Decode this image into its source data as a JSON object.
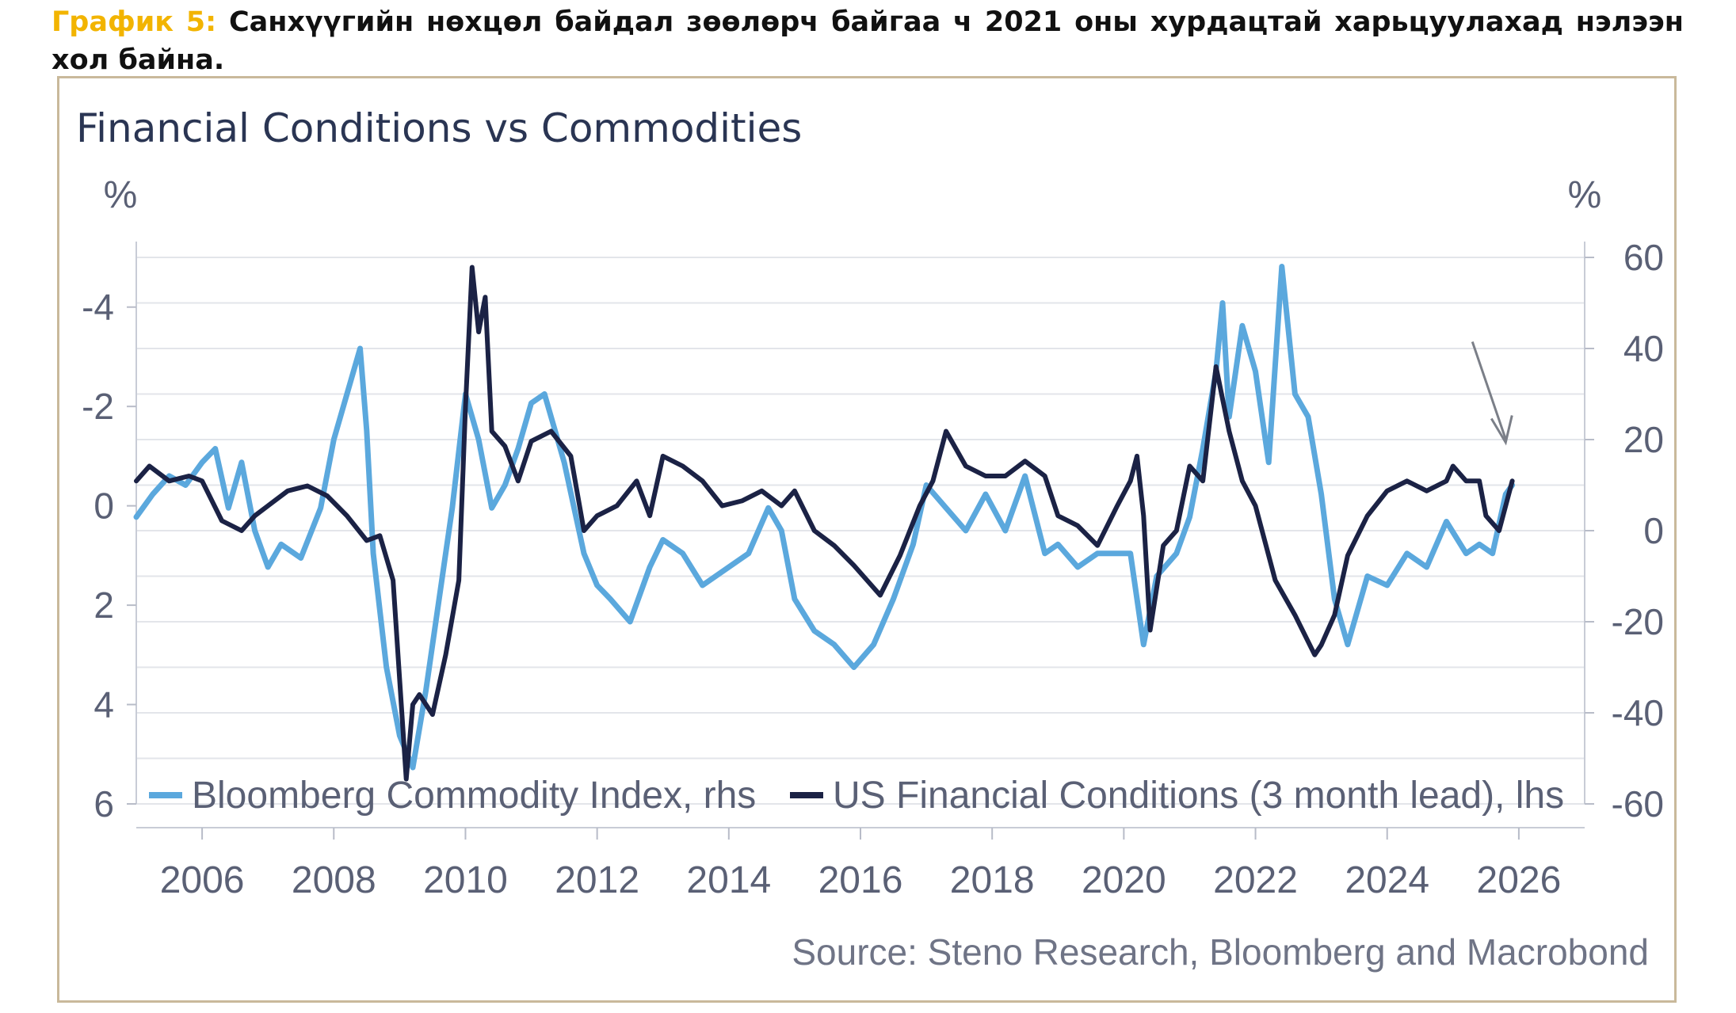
{
  "caption": {
    "label": "График 5:",
    "text": " Санхүүгийн нөхцөл байдал зөөлөрч байгаа ч 2021 оны хурдацтай харьцуулахад нэлээн хол байна."
  },
  "chart_data": {
    "type": "line",
    "title": "Financial Conditions vs Commodities",
    "left_axis": {
      "label": "%",
      "ticks": [
        -4,
        -2,
        0,
        2,
        4,
        6
      ],
      "range": [
        -5,
        6
      ],
      "inverted": true
    },
    "right_axis": {
      "label": "%",
      "ticks": [
        60,
        40,
        20,
        0,
        -20,
        -40,
        -60
      ],
      "range": [
        -60,
        60
      ]
    },
    "x_axis": {
      "ticks": [
        "2006",
        "2008",
        "2010",
        "2012",
        "2014",
        "2016",
        "2018",
        "2020",
        "2022",
        "2024",
        "2026"
      ],
      "range": [
        2005,
        2027
      ]
    },
    "grid": true,
    "legend_position": "bottom-inside",
    "colors": {
      "commodity": "#5ba8dd",
      "financial": "#1b2245"
    },
    "series": [
      {
        "name": "Bloomberg Commodity Index, rhs",
        "axis": "right",
        "color": "#5ba8dd",
        "x": [
          2005.0,
          2005.25,
          2005.5,
          2005.75,
          2006.0,
          2006.2,
          2006.4,
          2006.6,
          2006.8,
          2007.0,
          2007.2,
          2007.5,
          2007.8,
          2008.0,
          2008.2,
          2008.4,
          2008.5,
          2008.6,
          2008.8,
          2009.0,
          2009.2,
          2009.4,
          2009.6,
          2009.8,
          2010.0,
          2010.2,
          2010.4,
          2010.6,
          2010.8,
          2011.0,
          2011.2,
          2011.5,
          2011.8,
          2012.0,
          2012.2,
          2012.5,
          2012.8,
          2013.0,
          2013.3,
          2013.6,
          2014.0,
          2014.3,
          2014.6,
          2014.8,
          2015.0,
          2015.3,
          2015.6,
          2015.9,
          2016.2,
          2016.5,
          2016.8,
          2017.0,
          2017.3,
          2017.6,
          2017.9,
          2018.2,
          2018.5,
          2018.8,
          2019.0,
          2019.3,
          2019.6,
          2019.9,
          2020.1,
          2020.2,
          2020.3,
          2020.5,
          2020.8,
          2021.0,
          2021.2,
          2021.4,
          2021.5,
          2021.6,
          2021.8,
          2022.0,
          2022.2,
          2022.4,
          2022.6,
          2022.8,
          2023.0,
          2023.2,
          2023.4,
          2023.7,
          2024.0,
          2024.3,
          2024.6,
          2024.9,
          2025.2,
          2025.4,
          2025.6,
          2025.8,
          2025.9
        ],
        "values": [
          3,
          8,
          12,
          10,
          15,
          18,
          5,
          15,
          0,
          -8,
          -3,
          -6,
          5,
          20,
          30,
          40,
          22,
          -5,
          -30,
          -45,
          -52,
          -35,
          -15,
          5,
          30,
          20,
          5,
          10,
          18,
          28,
          30,
          15,
          -5,
          -12,
          -15,
          -20,
          -8,
          -2,
          -5,
          -12,
          -8,
          -5,
          5,
          0,
          -15,
          -22,
          -25,
          -30,
          -25,
          -15,
          -3,
          10,
          5,
          0,
          8,
          0,
          12,
          -5,
          -3,
          -8,
          -5,
          -5,
          -5,
          -15,
          -25,
          -10,
          -5,
          3,
          18,
          35,
          50,
          25,
          45,
          35,
          15,
          58,
          30,
          25,
          8,
          -15,
          -25,
          -10,
          -12,
          -5,
          -8,
          2,
          -5,
          -3,
          -5,
          8,
          10
        ]
      },
      {
        "name": "US Financial Conditions (3 month lead), lhs",
        "axis": "left",
        "color": "#1b2245",
        "x": [
          2005.0,
          2005.2,
          2005.5,
          2005.8,
          2006.0,
          2006.3,
          2006.6,
          2006.8,
          2007.0,
          2007.3,
          2007.6,
          2007.9,
          2008.2,
          2008.5,
          2008.7,
          2008.9,
          2009.0,
          2009.1,
          2009.2,
          2009.3,
          2009.5,
          2009.7,
          2009.9,
          2010.0,
          2010.1,
          2010.2,
          2010.3,
          2010.4,
          2010.6,
          2010.8,
          2011.0,
          2011.3,
          2011.6,
          2011.8,
          2012.0,
          2012.3,
          2012.6,
          2012.8,
          2013.0,
          2013.3,
          2013.6,
          2013.9,
          2014.2,
          2014.5,
          2014.8,
          2015.0,
          2015.3,
          2015.6,
          2015.9,
          2016.1,
          2016.3,
          2016.6,
          2016.9,
          2017.1,
          2017.3,
          2017.6,
          2017.9,
          2018.2,
          2018.5,
          2018.8,
          2019.0,
          2019.3,
          2019.6,
          2019.9,
          2020.1,
          2020.2,
          2020.3,
          2020.4,
          2020.6,
          2020.8,
          2021.0,
          2021.2,
          2021.4,
          2021.6,
          2021.8,
          2022.0,
          2022.3,
          2022.6,
          2022.9,
          2023.0,
          2023.2,
          2023.4,
          2023.7,
          2024.0,
          2024.3,
          2024.6,
          2024.9,
          2025.0,
          2025.2,
          2025.4,
          2025.5,
          2025.7,
          2025.9
        ],
        "values": [
          -0.5,
          -0.8,
          -0.5,
          -0.6,
          -0.5,
          0.3,
          0.5,
          0.2,
          0,
          -0.3,
          -0.4,
          -0.2,
          0.2,
          0.7,
          0.6,
          1.5,
          3.5,
          5.5,
          4.0,
          3.8,
          4.2,
          3.0,
          1.5,
          -2.0,
          -4.8,
          -3.5,
          -4.2,
          -1.5,
          -1.2,
          -0.5,
          -1.3,
          -1.5,
          -1.0,
          0.5,
          0.2,
          0,
          -0.5,
          0.2,
          -1.0,
          -0.8,
          -0.5,
          0,
          -0.1,
          -0.3,
          0,
          -0.3,
          0.5,
          0.8,
          1.2,
          1.5,
          1.8,
          1.0,
          0,
          -0.5,
          -1.5,
          -0.8,
          -0.6,
          -0.6,
          -0.9,
          -0.6,
          0.2,
          0.4,
          0.8,
          0,
          -0.5,
          -1.0,
          0.2,
          2.5,
          0.8,
          0.5,
          -0.8,
          -0.5,
          -2.8,
          -1.5,
          -0.5,
          0,
          1.5,
          2.2,
          3.0,
          2.8,
          2.2,
          1.0,
          0.2,
          -0.3,
          -0.5,
          -0.3,
          -0.5,
          -0.8,
          -0.5,
          -0.5,
          0.2,
          0.5,
          -0.5
        ]
      }
    ],
    "annotations": [
      {
        "type": "arrow",
        "x": 2025.8,
        "y_right": 18
      }
    ]
  },
  "source": "Source: Steno Research, Bloomberg and Macrobond"
}
